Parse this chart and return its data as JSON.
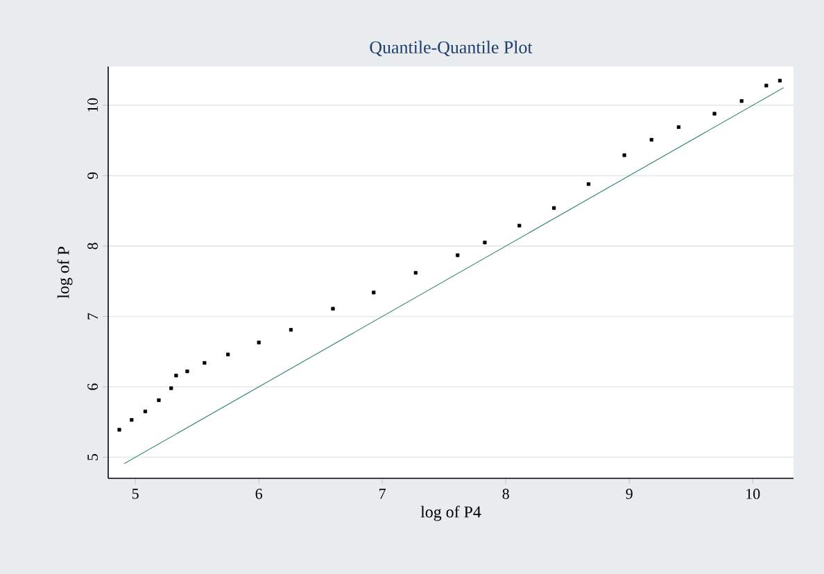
{
  "chart_data": {
    "type": "scatter",
    "title": "Quantile-Quantile Plot",
    "xlabel": "log of P4",
    "ylabel": "log of P",
    "xlim": [
      4.78,
      10.33
    ],
    "ylim": [
      4.7,
      10.55
    ],
    "xticks": [
      5,
      6,
      7,
      8,
      9,
      10
    ],
    "yticks": [
      5,
      6,
      7,
      8,
      9,
      10
    ],
    "grid": "y",
    "series": [
      {
        "color": "#000000",
        "marker": "square",
        "x": [
          4.87,
          4.97,
          5.08,
          5.19,
          5.29,
          5.33,
          5.42,
          5.56,
          5.75,
          6.0,
          6.26,
          6.6,
          6.93,
          7.27,
          7.61,
          7.83,
          8.11,
          8.39,
          8.67,
          8.96,
          9.18,
          9.4,
          9.69,
          9.91,
          10.11,
          10.22
        ],
        "values": [
          5.39,
          5.53,
          5.65,
          5.81,
          5.98,
          6.16,
          6.22,
          6.34,
          6.46,
          6.63,
          6.81,
          7.11,
          7.34,
          7.62,
          7.87,
          8.05,
          8.29,
          8.54,
          8.88,
          9.29,
          9.51,
          9.69,
          9.88,
          10.06,
          10.28,
          10.35
        ]
      },
      {
        "type": "line",
        "color": "#3a8a80",
        "x": [
          4.91,
          10.25
        ],
        "values": [
          4.91,
          10.25
        ]
      }
    ]
  }
}
